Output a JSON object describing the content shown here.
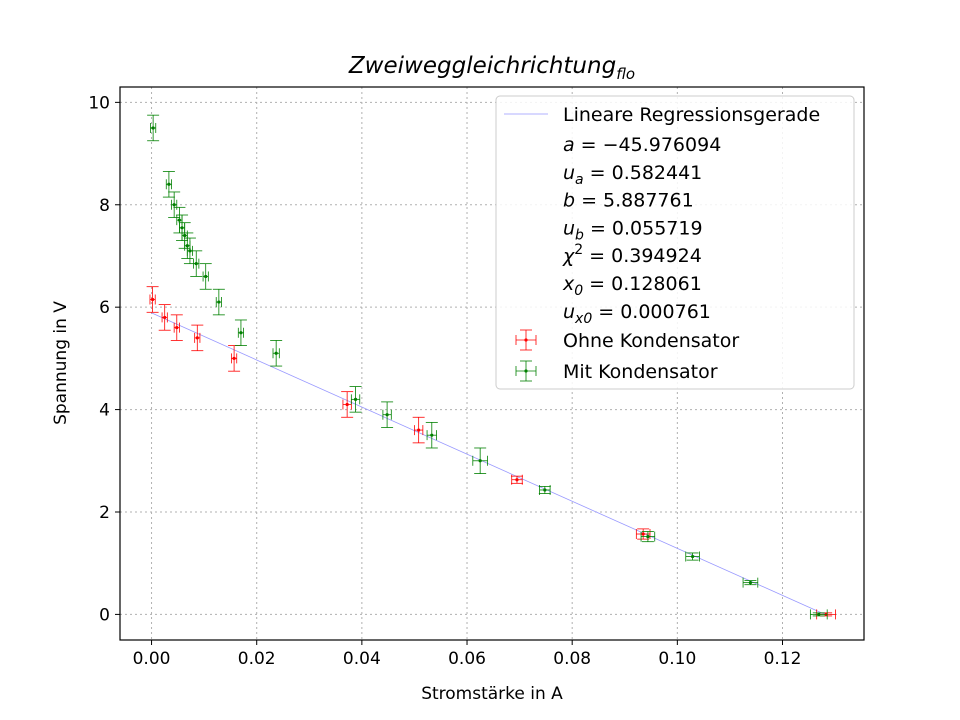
{
  "chart_data": {
    "type": "scatter",
    "title": "Zweiweggleichrichtung",
    "title_subscript": "flo",
    "xlabel": "Stromstärke in A",
    "ylabel": "Spannung in V",
    "xlim": [
      -0.006,
      0.1355
    ],
    "ylim": [
      -0.5,
      10.3
    ],
    "x_ticks": [
      0.0,
      0.02,
      0.04,
      0.06,
      0.08,
      0.1,
      0.12
    ],
    "x_tick_labels": [
      "0.00",
      "0.02",
      "0.04",
      "0.06",
      "0.08",
      "0.10",
      "0.12"
    ],
    "y_ticks": [
      0,
      2,
      4,
      6,
      8,
      10
    ],
    "y_tick_labels": [
      "0",
      "2",
      "4",
      "6",
      "8",
      "10"
    ],
    "grid": true,
    "legend_position": "top-right",
    "regression": {
      "name": "Lineare Regressionsgerade",
      "color": "#9999ff",
      "a": -45.976094,
      "b": 5.887761,
      "x_range": [
        0.0,
        0.128061
      ]
    },
    "stats": [
      {
        "symbol": "a",
        "sub": "",
        "sup": "",
        "value": "=  −45.976094"
      },
      {
        "symbol": "u",
        "sub": "a",
        "sup": "",
        "value": "=  0.582441"
      },
      {
        "symbol": "b",
        "sub": "",
        "sup": "",
        "value": "=  5.887761"
      },
      {
        "symbol": "u",
        "sub": "b",
        "sup": "",
        "value": "=  0.055719"
      },
      {
        "symbol": "χ",
        "sub": "",
        "sup": "2",
        "value": "=  0.394924"
      },
      {
        "symbol": "x",
        "sub": "0",
        "sup": "",
        "value": "= 0.128061"
      },
      {
        "symbol": "u",
        "sub": "x0",
        "sup": "",
        "value": "= 0.000761"
      }
    ],
    "series": [
      {
        "name": "Ohne Kondensator",
        "color": "#ff0000",
        "points": [
          {
            "x": 0.0002,
            "y": 6.15,
            "xerr": 0.0005,
            "yerr": 0.25
          },
          {
            "x": 0.0025,
            "y": 5.8,
            "xerr": 0.0005,
            "yerr": 0.25
          },
          {
            "x": 0.0048,
            "y": 5.6,
            "xerr": 0.0005,
            "yerr": 0.25
          },
          {
            "x": 0.0087,
            "y": 5.4,
            "xerr": 0.0005,
            "yerr": 0.25
          },
          {
            "x": 0.0157,
            "y": 5.0,
            "xerr": 0.0005,
            "yerr": 0.25
          },
          {
            "x": 0.0372,
            "y": 4.1,
            "xerr": 0.0008,
            "yerr": 0.25
          },
          {
            "x": 0.0508,
            "y": 3.6,
            "xerr": 0.0008,
            "yerr": 0.25
          },
          {
            "x": 0.0695,
            "y": 2.63,
            "xerr": 0.001,
            "yerr": 0.07
          },
          {
            "x": 0.0935,
            "y": 1.57,
            "xerr": 0.0013,
            "yerr": 0.1
          },
          {
            "x": 0.1283,
            "y": 0.0,
            "xerr": 0.0018,
            "yerr": 0.03
          }
        ]
      },
      {
        "name": "Mit Kondensator",
        "color": "#008000",
        "points": [
          {
            "x": 0.0003,
            "y": 9.5,
            "xerr": 0.0005,
            "yerr": 0.25
          },
          {
            "x": 0.0033,
            "y": 8.4,
            "xerr": 0.0005,
            "yerr": 0.25
          },
          {
            "x": 0.0043,
            "y": 8.0,
            "xerr": 0.0005,
            "yerr": 0.25
          },
          {
            "x": 0.0053,
            "y": 7.7,
            "xerr": 0.0005,
            "yerr": 0.25
          },
          {
            "x": 0.0058,
            "y": 7.55,
            "xerr": 0.0005,
            "yerr": 0.25
          },
          {
            "x": 0.0063,
            "y": 7.4,
            "xerr": 0.0005,
            "yerr": 0.25
          },
          {
            "x": 0.0068,
            "y": 7.2,
            "xerr": 0.0005,
            "yerr": 0.25
          },
          {
            "x": 0.0073,
            "y": 7.1,
            "xerr": 0.0005,
            "yerr": 0.25
          },
          {
            "x": 0.0085,
            "y": 6.85,
            "xerr": 0.0005,
            "yerr": 0.25
          },
          {
            "x": 0.0103,
            "y": 6.6,
            "xerr": 0.0005,
            "yerr": 0.25
          },
          {
            "x": 0.0128,
            "y": 6.1,
            "xerr": 0.0005,
            "yerr": 0.25
          },
          {
            "x": 0.017,
            "y": 5.5,
            "xerr": 0.0005,
            "yerr": 0.25
          },
          {
            "x": 0.0237,
            "y": 5.1,
            "xerr": 0.0006,
            "yerr": 0.25
          },
          {
            "x": 0.0388,
            "y": 4.2,
            "xerr": 0.0008,
            "yerr": 0.25
          },
          {
            "x": 0.0448,
            "y": 3.9,
            "xerr": 0.0008,
            "yerr": 0.25
          },
          {
            "x": 0.0533,
            "y": 3.5,
            "xerr": 0.0009,
            "yerr": 0.25
          },
          {
            "x": 0.0625,
            "y": 3.0,
            "xerr": 0.0014,
            "yerr": 0.25
          },
          {
            "x": 0.0748,
            "y": 2.43,
            "xerr": 0.001,
            "yerr": 0.07
          },
          {
            "x": 0.0944,
            "y": 1.52,
            "xerr": 0.0013,
            "yerr": 0.1
          },
          {
            "x": 0.1029,
            "y": 1.13,
            "xerr": 0.0013,
            "yerr": 0.07
          },
          {
            "x": 0.1139,
            "y": 0.62,
            "xerr": 0.0014,
            "yerr": 0.04
          },
          {
            "x": 0.1269,
            "y": 0.0,
            "xerr": 0.0016,
            "yerr": 0.03
          }
        ]
      }
    ]
  }
}
